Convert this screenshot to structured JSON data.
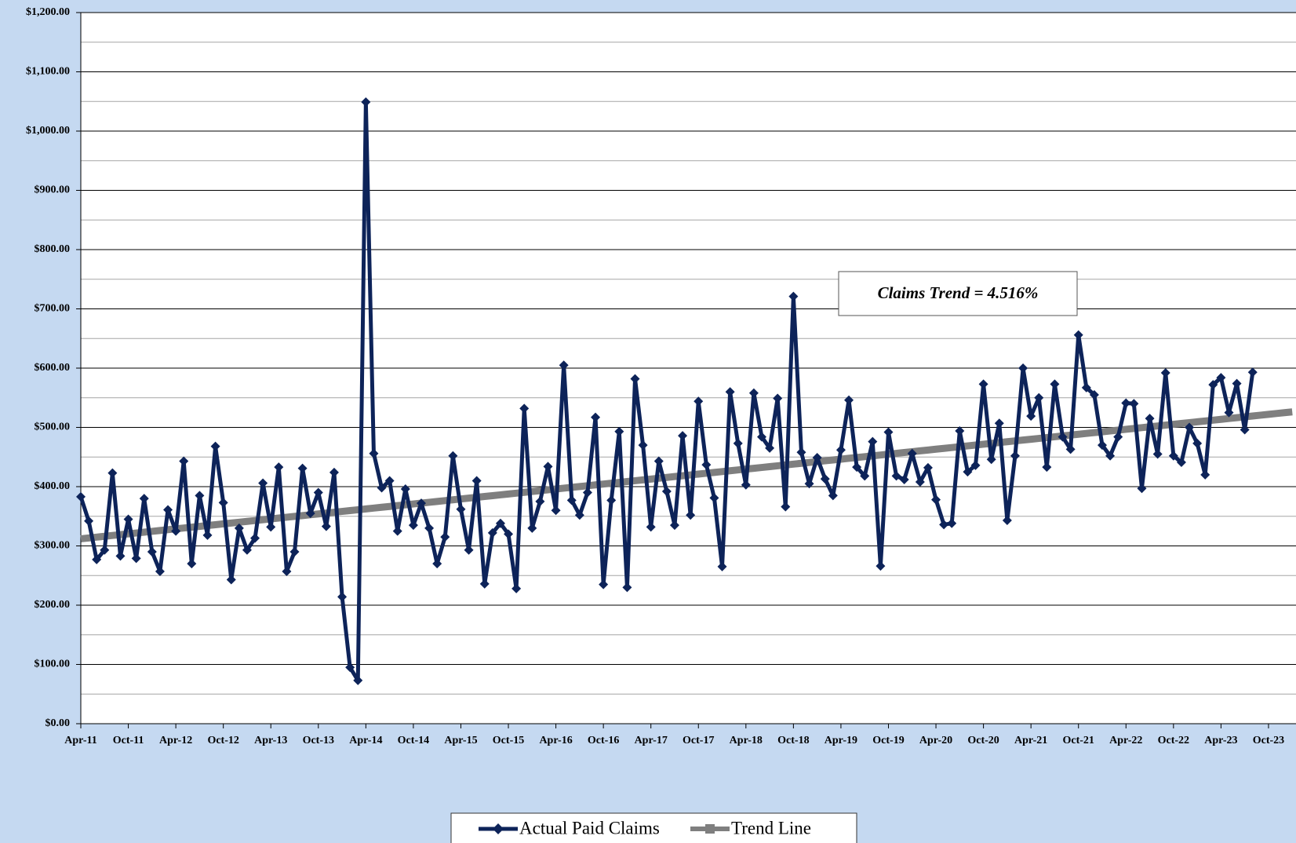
{
  "chart_data": {
    "type": "line",
    "annotation": "Claims Trend = 4.516%",
    "categories": [
      "Apr-11",
      null,
      null,
      null,
      null,
      null,
      "Oct-11",
      null,
      null,
      null,
      null,
      null,
      "Apr-12",
      null,
      null,
      null,
      null,
      null,
      "Oct-12",
      null,
      null,
      null,
      null,
      null,
      "Apr-13",
      null,
      null,
      null,
      null,
      null,
      "Oct-13",
      null,
      null,
      null,
      null,
      null,
      "Apr-14",
      null,
      null,
      null,
      null,
      null,
      "Oct-14",
      null,
      null,
      null,
      null,
      null,
      "Apr-15",
      null,
      null,
      null,
      null,
      null,
      "Oct-15",
      null,
      null,
      null,
      null,
      null,
      "Apr-16",
      null,
      null,
      null,
      null,
      null,
      "Oct-16",
      null,
      null,
      null,
      null,
      null,
      "Apr-17",
      null,
      null,
      null,
      null,
      null,
      "Oct-17",
      null,
      null,
      null,
      null,
      null,
      "Apr-18",
      null,
      null,
      null,
      null,
      null,
      "Oct-18",
      null,
      null,
      null,
      null,
      null,
      "Apr-19",
      null,
      null,
      null,
      null,
      null,
      "Oct-19",
      null,
      null,
      null,
      null,
      null,
      "Apr-20",
      null,
      null,
      null,
      null,
      null,
      "Oct-20",
      null,
      null,
      null,
      null,
      null,
      "Apr-21",
      null,
      null,
      null,
      null,
      null,
      "Oct-21",
      null,
      null,
      null,
      null,
      null,
      "Apr-22",
      null,
      null,
      null,
      null,
      null,
      "Oct-22",
      null,
      null,
      null,
      null,
      null,
      "Apr-23",
      null,
      null,
      null,
      null,
      null,
      "Oct-23",
      null,
      null,
      null
    ],
    "series": [
      {
        "name": "Actual Paid Claims",
        "color": "#0d2359",
        "marker": "diamond",
        "values": [
          383,
          342,
          277,
          293,
          423,
          283,
          345,
          279,
          380,
          290,
          257,
          361,
          325,
          443,
          270,
          385,
          318,
          468,
          373,
          243,
          330,
          293,
          313,
          406,
          332,
          433,
          257,
          290,
          431,
          355,
          390,
          333,
          424,
          214,
          95,
          73,
          1049,
          456,
          398,
          410,
          325,
          396,
          335,
          372,
          330,
          270,
          315,
          452,
          362,
          293,
          410,
          236,
          322,
          338,
          320,
          228,
          532,
          330,
          375,
          434,
          360,
          605,
          377,
          352,
          390,
          517,
          235,
          377,
          493,
          230,
          582,
          470,
          332,
          443,
          392,
          335,
          486,
          352,
          544,
          437,
          381,
          265,
          560,
          473,
          403,
          558,
          484,
          465,
          549,
          366,
          721,
          458,
          405,
          449,
          413,
          385,
          462,
          546,
          433,
          418,
          476,
          266,
          492,
          418,
          412,
          456,
          408,
          432,
          378,
          336,
          338,
          494,
          425,
          436,
          573,
          446,
          507,
          343,
          452,
          600,
          519,
          550,
          433,
          573,
          484,
          463,
          656,
          567,
          555,
          470,
          452,
          484,
          541,
          540,
          397,
          515,
          455,
          592,
          452,
          441,
          500,
          473,
          420,
          572,
          584,
          525,
          574,
          496,
          593,
          null,
          null,
          null,
          null,
          null
        ]
      },
      {
        "name": "Trend Line",
        "color": "#7f7f7f",
        "marker": "square",
        "values": [
          312,
          313.4,
          314.8,
          316.2,
          317.6,
          319,
          320.4,
          321.8,
          323.2,
          324.6,
          326,
          327.4,
          328.8,
          330.2,
          331.6,
          333,
          334.4,
          335.8,
          337.2,
          338.6,
          340,
          341.4,
          342.8,
          344.2,
          345.6,
          347,
          348.4,
          349.8,
          351.2,
          352.6,
          354,
          355.4,
          356.8,
          358.2,
          359.6,
          361,
          362.4,
          363.8,
          365.2,
          366.6,
          368,
          369.4,
          370.8,
          372.2,
          373.6,
          375,
          376.4,
          377.8,
          379.2,
          380.6,
          382,
          383.4,
          384.8,
          386.2,
          387.6,
          389,
          390.4,
          391.8,
          393.2,
          394.6,
          396,
          397.4,
          398.8,
          400.2,
          401.6,
          403,
          404.4,
          405.8,
          407.2,
          408.6,
          410,
          411.4,
          412.8,
          414.2,
          415.6,
          417,
          418.4,
          419.8,
          421.2,
          422.6,
          424,
          425.4,
          426.8,
          428.2,
          429.6,
          431,
          432.4,
          433.8,
          435.2,
          436.6,
          438,
          439.4,
          440.8,
          442.2,
          443.6,
          445,
          446.4,
          447.8,
          449.2,
          450.6,
          452,
          453.4,
          454.8,
          456.2,
          457.6,
          459,
          460.4,
          461.8,
          463.2,
          464.6,
          466,
          467.4,
          468.8,
          470.2,
          471.6,
          473,
          474.4,
          475.8,
          477.2,
          478.6,
          480,
          481.4,
          482.8,
          484.2,
          485.6,
          487,
          488.4,
          489.8,
          491.2,
          492.6,
          494,
          495.4,
          496.8,
          498.2,
          499.6,
          501,
          502.4,
          503.8,
          505.2,
          506.6,
          508,
          509.4,
          510.8,
          512.2,
          513.6,
          515,
          516.4,
          517.8,
          519.2,
          520.6,
          522,
          523.4,
          524.8,
          526.2
        ]
      }
    ],
    "ylim": [
      0,
      1200
    ],
    "yticks": [
      {
        "value": 0,
        "label": "$0.00"
      },
      {
        "value": 100,
        "label": "$100.00"
      },
      {
        "value": 200,
        "label": "$200.00"
      },
      {
        "value": 300,
        "label": "$300.00"
      },
      {
        "value": 400,
        "label": "$400.00"
      },
      {
        "value": 500,
        "label": "$500.00"
      },
      {
        "value": 600,
        "label": "$600.00"
      },
      {
        "value": 700,
        "label": "$700.00"
      },
      {
        "value": 800,
        "label": "$800.00"
      },
      {
        "value": 900,
        "label": "$900.00"
      },
      {
        "value": 1000,
        "label": "$1,000.00"
      },
      {
        "value": 1100,
        "label": "$1,100.00"
      },
      {
        "value": 1200,
        "label": "$1,200.00"
      }
    ],
    "grid": true,
    "minor_grid": true,
    "legend": "bottom"
  }
}
